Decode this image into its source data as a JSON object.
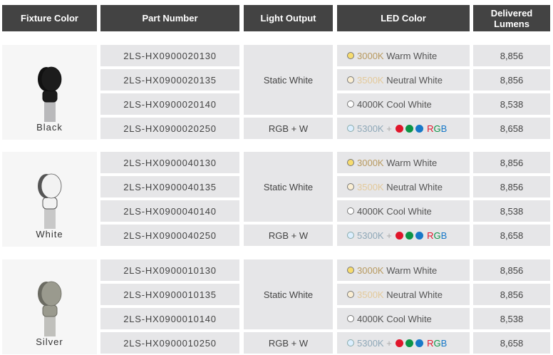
{
  "headers": [
    "Fixture Color",
    "Part Number",
    "Light Output",
    "LED Color",
    "Delivered Lumens"
  ],
  "colors": {
    "header_bg": "#434343",
    "row_bg": "#e6e6e8",
    "fixture_bg": "#f6f6f6",
    "warm": "#f7dc6f",
    "neutral": "#fbefd4",
    "cool": "#ffffff",
    "daylight": "#dcefff",
    "red": "#e0162b",
    "green": "#0c9447",
    "blue": "#1878c8"
  },
  "led_colors": {
    "warm": {
      "k": "3000K",
      "name": "Warm White"
    },
    "neutral": {
      "k": "3500K",
      "name": "Neutral White"
    },
    "cool": {
      "k": "4000K Cool White"
    },
    "rgbw": {
      "k": "5300K",
      "plus": "+",
      "r": "R",
      "g": "G",
      "b": "B"
    }
  },
  "groups": [
    {
      "fixture": "Black",
      "static": "Static White",
      "rgbw": "RGB + W",
      "parts": [
        "2LS-HX0900020130",
        "2LS-HX0900020135",
        "2LS-HX0900020140",
        "2LS-HX0900020250"
      ],
      "lumens": [
        "8,856",
        "8,856",
        "8,538",
        "8,658"
      ]
    },
    {
      "fixture": "White",
      "static": "Static White",
      "rgbw": "RGB + W",
      "parts": [
        "2LS-HX0900040130",
        "2LS-HX0900040135",
        "2LS-HX0900040140",
        "2LS-HX0900040250"
      ],
      "lumens": [
        "8,856",
        "8,856",
        "8,538",
        "8,658"
      ]
    },
    {
      "fixture": "Silver",
      "static": "Static White",
      "rgbw": "RGB + W",
      "parts": [
        "2LS-HX0900010130",
        "2LS-HX0900010135",
        "2LS-HX0900010140",
        "2LS-HX0900010250"
      ],
      "lumens": [
        "8,856",
        "8,856",
        "8,538",
        "8,658"
      ]
    }
  ]
}
